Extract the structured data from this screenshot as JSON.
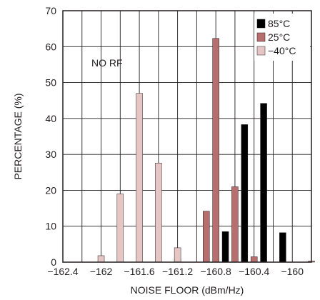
{
  "chart_data": {
    "type": "bar",
    "title": "",
    "xlabel": "NOISE FLOOR (dBm/Hz)",
    "ylabel": "PERCENTAGE (%)",
    "xlim": [
      -162.4,
      -159.8
    ],
    "ylim": [
      0,
      70
    ],
    "x_ticks": [
      -162.4,
      -162,
      -161.6,
      -161.2,
      -160.8,
      -160.4,
      -160
    ],
    "x_tick_labels": [
      "−162.4",
      "−162",
      "−161.6",
      "−161.2",
      "−160.8",
      "−160.4",
      "−160"
    ],
    "y_ticks": [
      0,
      10,
      20,
      30,
      40,
      50,
      60,
      70
    ],
    "y_tick_labels": [
      "0",
      "10",
      "20",
      "30",
      "40",
      "50",
      "60",
      "70"
    ],
    "grid": true,
    "legend": "top-right",
    "annotation": "NO RF",
    "series": [
      {
        "name": "85°C",
        "color": "#000000",
        "x": [
          -160.7,
          -160.5,
          -160.3,
          -160.1
        ],
        "values": [
          8.5,
          38.3,
          44.2,
          8.2
        ]
      },
      {
        "name": "25°C",
        "color": "#b76e6e",
        "x": [
          -161.8,
          -161.2,
          -160.9,
          -160.8,
          -160.6,
          -160.4,
          -159.8
        ],
        "values": [
          0,
          1,
          14.2,
          62.3,
          21,
          1.5,
          0.3
        ]
      },
      {
        "name": "−40°C",
        "color": "#e6c5c5",
        "x": [
          -162,
          -161.8,
          -161.6,
          -161.4,
          -161.2
        ],
        "values": [
          1.8,
          19,
          47,
          27.6,
          4
        ]
      }
    ]
  }
}
